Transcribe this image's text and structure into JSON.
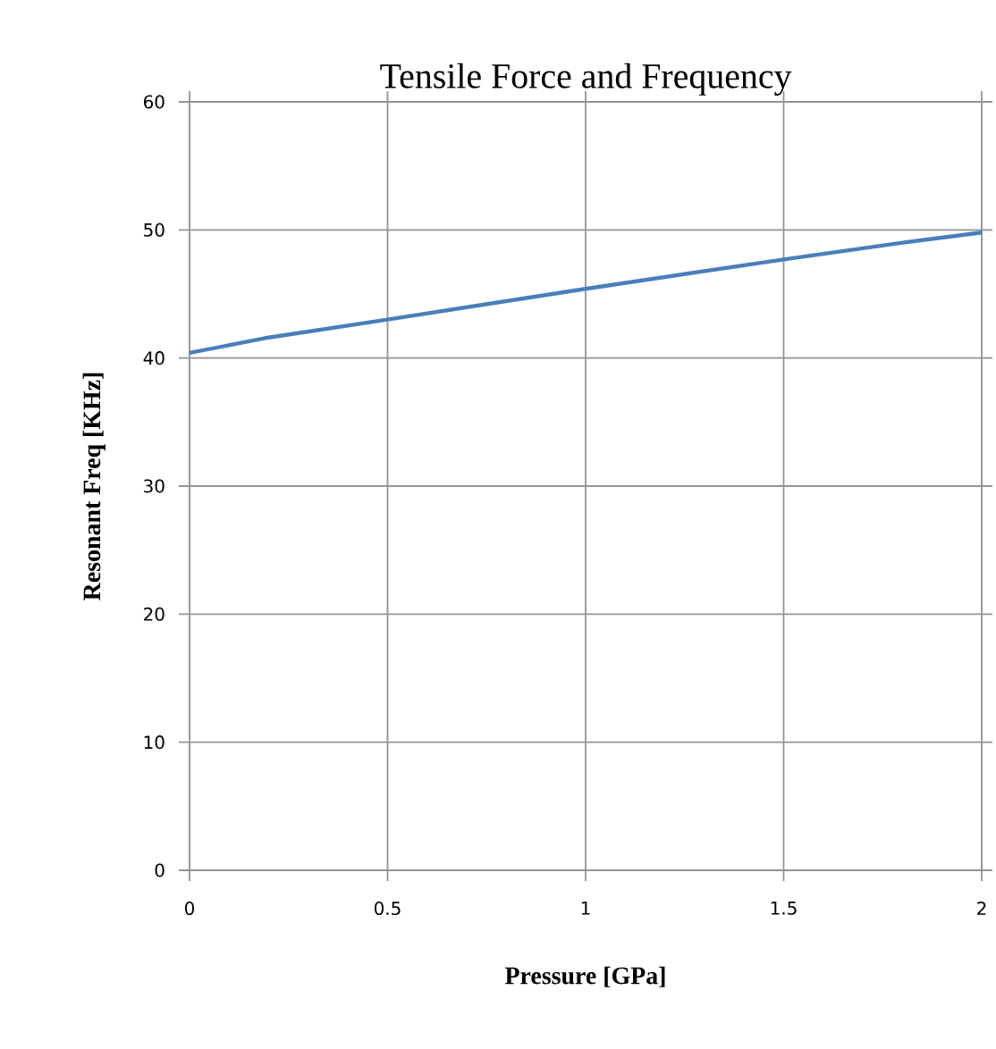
{
  "chart_data": {
    "type": "line",
    "title": "Tensile Force and Frequency",
    "xlabel": "Pressure [GPa]",
    "ylabel": "Resonant Freq [KHz]",
    "series": [
      {
        "color": "#4a7ebb",
        "x": [
          0,
          0.2,
          0.5,
          1,
          1.5,
          1.8,
          2
        ],
        "values": [
          40.4,
          41.6,
          43.0,
          45.4,
          47.7,
          49.0,
          49.8
        ]
      }
    ],
    "xlim": [
      0,
      2
    ],
    "ylim": [
      0,
      60
    ],
    "xticks": [
      0,
      0.5,
      1,
      1.5,
      2
    ],
    "yticks": [
      0,
      10,
      20,
      30,
      40,
      50,
      60
    ],
    "grid": true,
    "marker": "none",
    "line_style": "solid"
  }
}
